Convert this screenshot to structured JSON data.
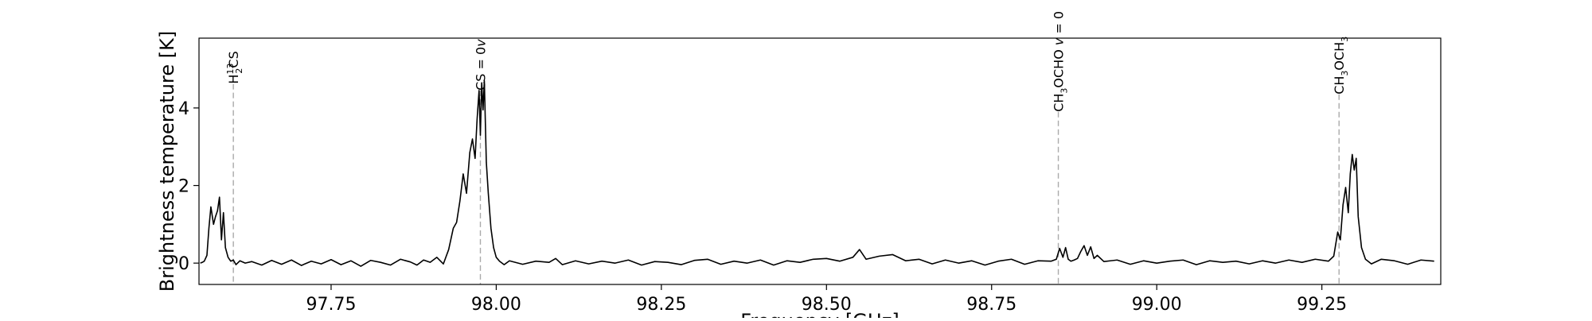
{
  "chart_data": {
    "type": "line",
    "xlabel": "Frequency [GHz]",
    "ylabel": "Brightness temperature [K]",
    "xlim": [
      97.55,
      99.43
    ],
    "ylim": [
      -0.55,
      5.8
    ],
    "xticks": [
      "97.75",
      "98.00",
      "98.25",
      "98.50",
      "98.75",
      "99.00",
      "99.25"
    ],
    "yticks": [
      "0",
      "2",
      "4"
    ],
    "grid": false,
    "colors": {
      "spectrum": "#000000",
      "marker": "#aaaaaa"
    },
    "series": [
      {
        "name": "",
        "x": [
          97.552,
          97.555,
          97.558,
          97.562,
          97.565,
          97.568,
          97.572,
          97.575,
          97.578,
          97.581,
          97.584,
          97.587,
          97.59,
          97.594,
          97.598,
          97.602,
          97.606,
          97.612,
          97.62,
          97.63,
          97.645,
          97.66,
          97.675,
          97.69,
          97.705,
          97.72,
          97.735,
          97.75,
          97.765,
          97.78,
          97.795,
          97.81,
          97.825,
          97.84,
          97.855,
          97.87,
          97.88,
          97.89,
          97.9,
          97.91,
          97.92,
          97.928,
          97.935,
          97.94,
          97.945,
          97.95,
          97.955,
          97.96,
          97.964,
          97.968,
          97.971,
          97.974,
          97.976,
          97.978,
          97.98,
          97.982,
          97.985,
          97.988,
          97.992,
          97.996,
          98.0,
          98.005,
          98.012,
          98.02,
          98.04,
          98.06,
          98.08,
          98.09,
          98.1,
          98.12,
          98.14,
          98.16,
          98.18,
          98.2,
          98.22,
          98.24,
          98.26,
          98.28,
          98.3,
          98.32,
          98.34,
          98.36,
          98.38,
          98.4,
          98.42,
          98.44,
          98.46,
          98.48,
          98.5,
          98.52,
          98.54,
          98.55,
          98.56,
          98.58,
          98.6,
          98.62,
          98.64,
          98.66,
          98.68,
          98.7,
          98.72,
          98.74,
          98.76,
          98.78,
          98.8,
          98.82,
          98.84,
          98.848,
          98.853,
          98.858,
          98.862,
          98.866,
          98.87,
          98.875,
          98.88,
          98.885,
          98.89,
          98.895,
          98.9,
          98.905,
          98.91,
          98.92,
          98.94,
          98.96,
          98.98,
          99.0,
          99.02,
          99.04,
          99.06,
          99.08,
          99.1,
          99.12,
          99.14,
          99.16,
          99.18,
          99.2,
          99.22,
          99.24,
          99.26,
          99.268,
          99.274,
          99.278,
          99.282,
          99.286,
          99.29,
          99.293,
          99.296,
          99.299,
          99.302,
          99.305,
          99.31,
          99.316,
          99.325,
          99.34,
          99.36,
          99.38,
          99.4,
          99.42
        ],
        "y": [
          0.0,
          0.02,
          0.05,
          0.2,
          0.9,
          1.45,
          1.0,
          1.2,
          1.35,
          1.7,
          0.6,
          1.3,
          0.4,
          0.15,
          0.05,
          0.08,
          -0.04,
          0.06,
          0.0,
          0.04,
          -0.05,
          0.07,
          -0.03,
          0.08,
          -0.06,
          0.05,
          -0.02,
          0.09,
          -0.04,
          0.06,
          -0.08,
          0.07,
          0.02,
          -0.05,
          0.1,
          0.03,
          -0.05,
          0.08,
          0.02,
          0.15,
          -0.02,
          0.35,
          0.9,
          1.05,
          1.6,
          2.3,
          1.8,
          2.85,
          3.2,
          2.7,
          3.7,
          4.45,
          3.3,
          4.65,
          3.95,
          4.7,
          2.6,
          1.8,
          0.9,
          0.4,
          0.15,
          0.05,
          -0.04,
          0.06,
          -0.03,
          0.05,
          0.02,
          0.12,
          -0.04,
          0.06,
          -0.02,
          0.05,
          0.0,
          0.08,
          -0.05,
          0.04,
          0.02,
          -0.04,
          0.07,
          0.1,
          -0.03,
          0.05,
          0.0,
          0.08,
          -0.05,
          0.06,
          0.02,
          0.1,
          0.12,
          0.05,
          0.15,
          0.35,
          0.1,
          0.18,
          0.22,
          0.06,
          0.1,
          -0.02,
          0.08,
          0.0,
          0.06,
          -0.05,
          0.05,
          0.1,
          -0.03,
          0.06,
          0.05,
          0.1,
          0.38,
          0.15,
          0.4,
          0.1,
          0.05,
          0.08,
          0.12,
          0.3,
          0.45,
          0.2,
          0.42,
          0.12,
          0.2,
          0.04,
          0.08,
          -0.03,
          0.06,
          0.0,
          0.05,
          0.08,
          -0.04,
          0.06,
          0.02,
          0.05,
          -0.02,
          0.06,
          0.0,
          0.08,
          0.02,
          0.1,
          0.05,
          0.18,
          0.8,
          0.6,
          1.5,
          1.95,
          1.3,
          2.3,
          2.8,
          2.4,
          2.7,
          1.2,
          0.4,
          0.1,
          -0.02,
          0.1,
          0.06,
          -0.03,
          0.08,
          0.05
        ]
      }
    ],
    "markers": [
      {
        "x": 97.602,
        "label_main": "H",
        "label_sub": "2",
        "label_sup": "13",
        "label_rest": "CS",
        "label_top": 4.62
      },
      {
        "x": 97.976,
        "label_main": "CS ",
        "label_italic": "v",
        "label_rest": " = 0",
        "label_top": 4.45
      },
      {
        "x": 98.851,
        "label_main": "CH",
        "label_sub": "3",
        "label_rest": "OCHO ",
        "label_italic": "v",
        "label_rest2": " = 0",
        "label_top": 3.9
      },
      {
        "x": 99.276,
        "label_main": "CH",
        "label_sub": "3",
        "label_rest": "OCH",
        "label_sub2": "3",
        "label_top": 4.35
      }
    ]
  }
}
